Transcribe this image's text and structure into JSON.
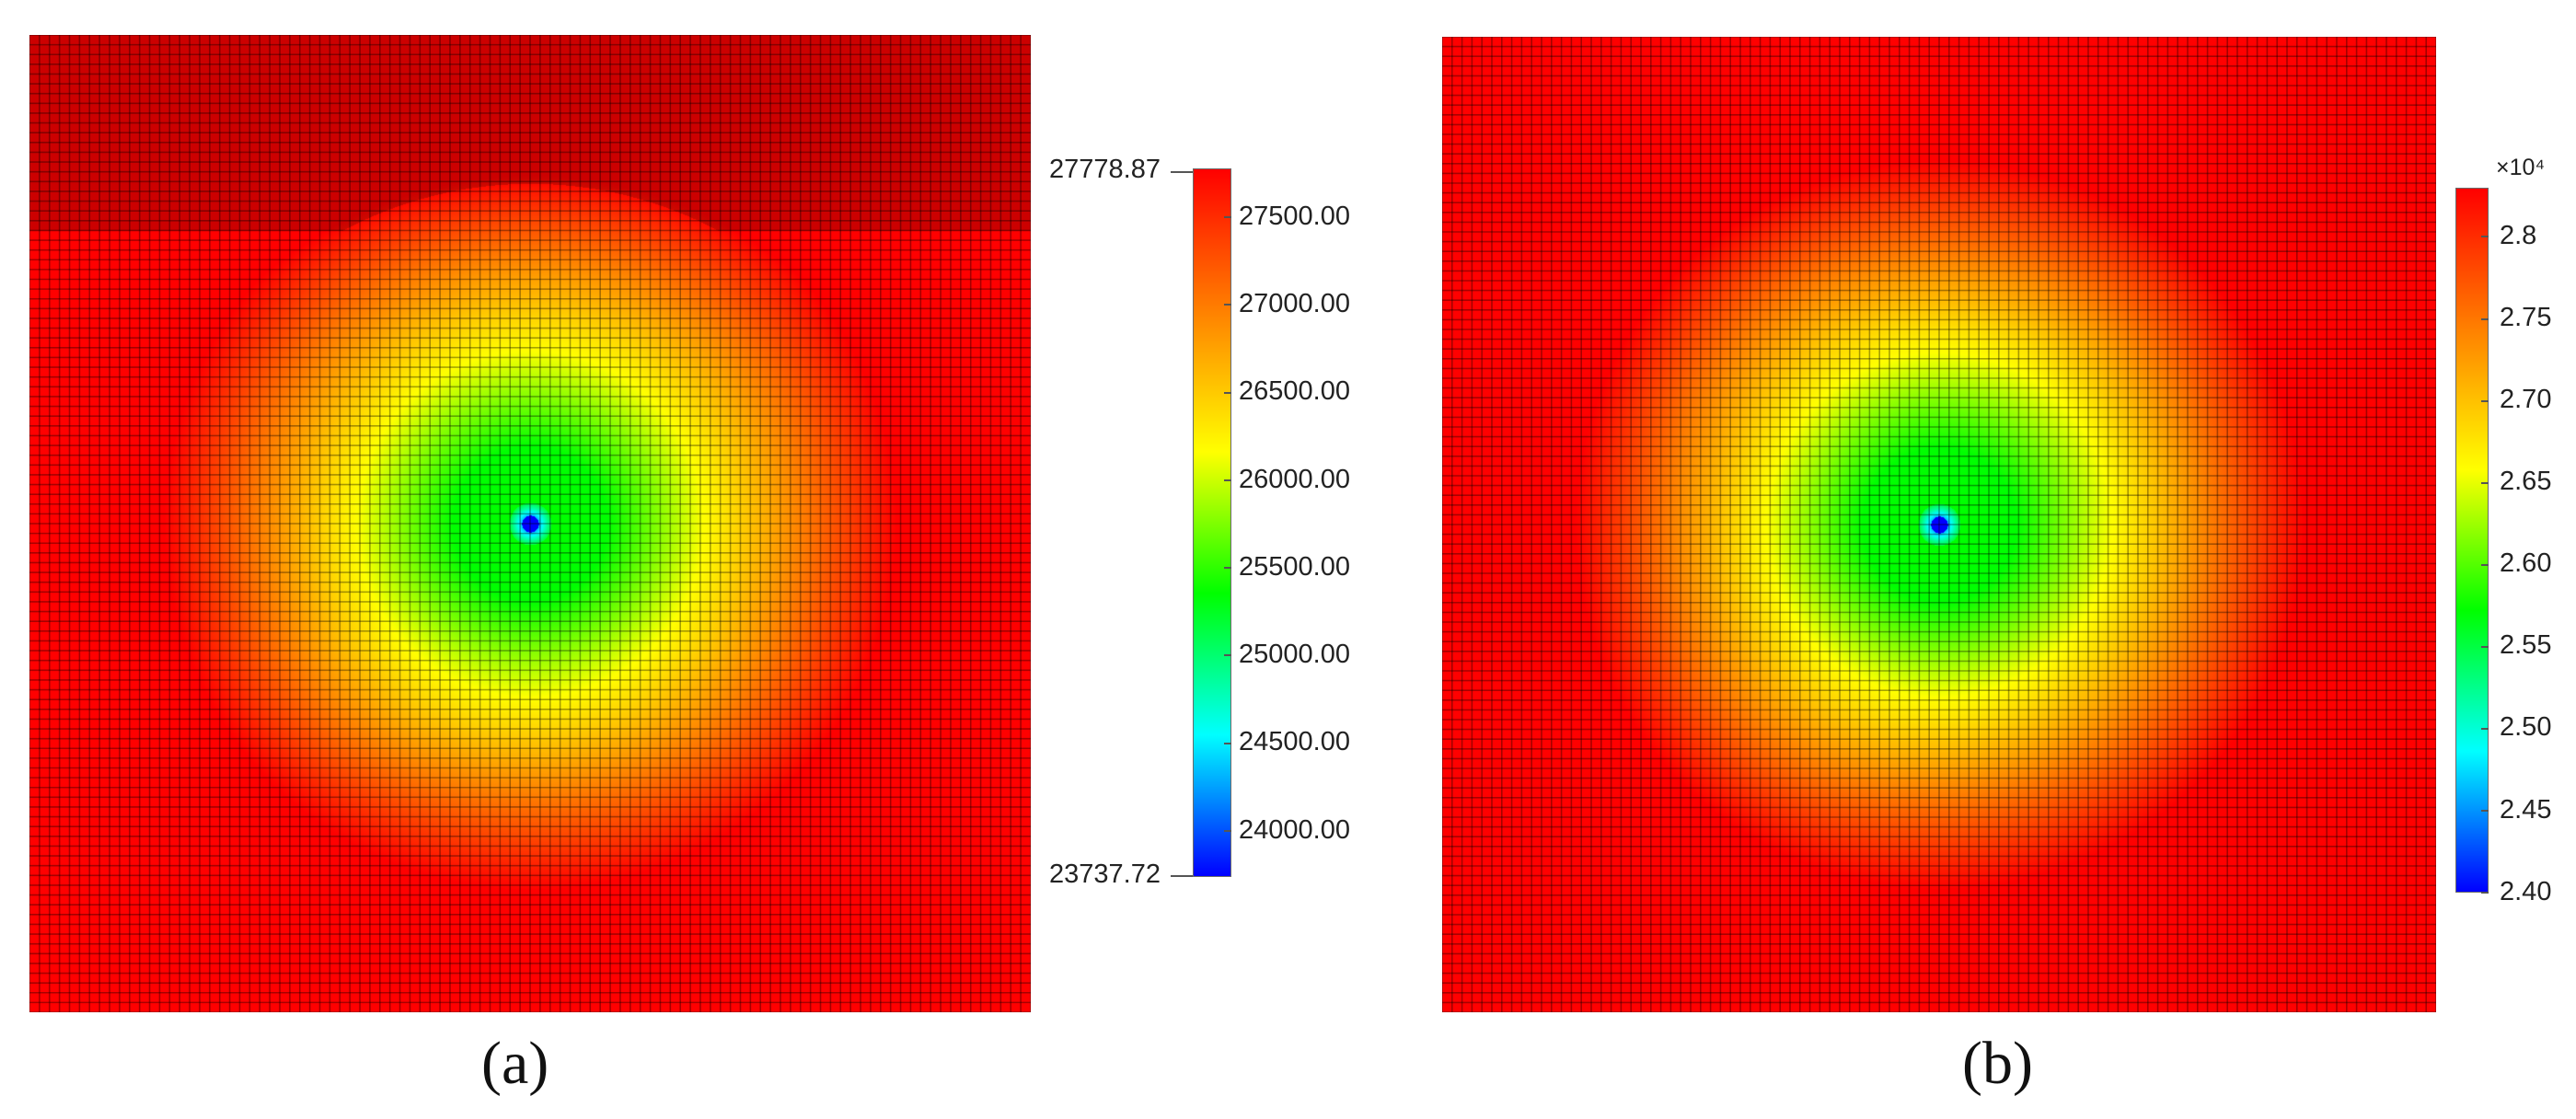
{
  "chart_data": [
    {
      "type": "heatmap",
      "panel_label": "(a)",
      "grid": true,
      "cells": 100,
      "well_center": [
        0.5,
        0.5
      ],
      "colorbar": {
        "min": 23737.72,
        "max": 27778.87,
        "min_label": "23737.72",
        "max_label": "27778.87",
        "ticks": [
          27500.0,
          27000.0,
          26500.0,
          26000.0,
          25500.0,
          25000.0,
          24500.0,
          24000.0
        ],
        "tick_labels": [
          "27500.00",
          "27000.00",
          "26500.00",
          "26000.00",
          "25500.00",
          "25000.00",
          "24500.00",
          "24000.00"
        ],
        "placement": "right"
      }
    },
    {
      "type": "heatmap",
      "panel_label": "(b)",
      "grid": true,
      "cells": 100,
      "well_center": [
        0.5,
        0.5
      ],
      "colorbar": {
        "min": 2.4,
        "max": 2.83,
        "exponent_label": "×10⁴",
        "ticks": [
          2.8,
          2.75,
          2.7,
          2.65,
          2.6,
          2.55,
          2.5,
          2.45,
          2.4
        ],
        "tick_labels": [
          "2.8",
          "2.75",
          "2.70",
          "2.65",
          "2.60",
          "2.55",
          "2.50",
          "2.45",
          "2.40"
        ],
        "placement": "right"
      }
    }
  ],
  "colors": {
    "colormap": [
      "#0000ff",
      "#00ffff",
      "#00ff00",
      "#ffff00",
      "#ff8000",
      "#ff0000"
    ],
    "grid_line": "#000000",
    "background": "#ffffff"
  }
}
